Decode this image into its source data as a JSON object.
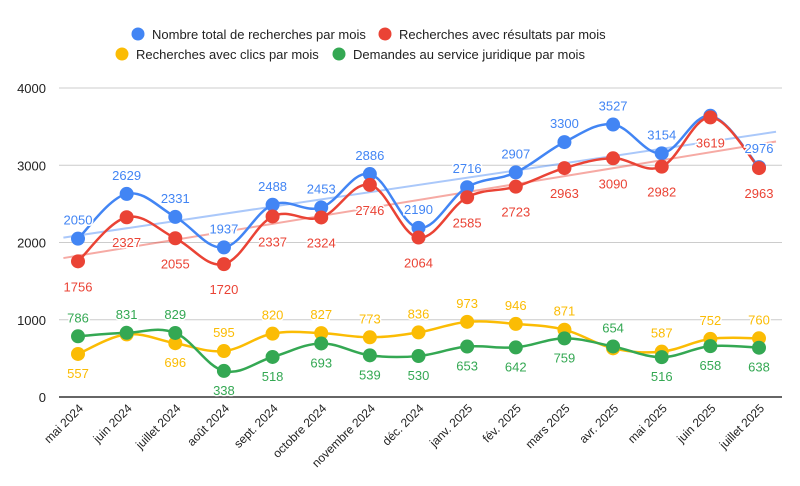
{
  "chart_data": {
    "type": "line",
    "title": "",
    "xlabel": "",
    "ylabel": "",
    "ylim": [
      0,
      4000
    ],
    "yticks": [
      "0",
      "1000",
      "2000",
      "3000",
      "4000"
    ],
    "grid": true,
    "legend_position": "top",
    "categories": [
      "mai 2024",
      "juin 2024",
      "juillet 2024",
      "août 2024",
      "sept. 2024",
      "octobre 2024",
      "novembre 2024",
      "déc. 2024",
      "janv. 2025",
      "fév. 2025",
      "mars 2025",
      "avr. 2025",
      "mai 2025",
      "juin 2025",
      "juillet 2025"
    ],
    "series": [
      {
        "name": "Nombre total de recherches par mois",
        "color": "#4285F4",
        "trendline": true,
        "values": [
          2050,
          2629,
          2331,
          1937,
          2488,
          2453,
          2886,
          2190,
          2716,
          2907,
          3300,
          3527,
          3154,
          3640,
          2976
        ],
        "labels": [
          "2050",
          "2629",
          "2331",
          "1937",
          "2488",
          "2453",
          "2886",
          "2190",
          "2716",
          "2907",
          "3300",
          "3527",
          "3154",
          "",
          "2976"
        ]
      },
      {
        "name": "Recherches avec résultats par mois",
        "color": "#EA4335",
        "trendline": true,
        "values": [
          1756,
          2327,
          2055,
          1720,
          2337,
          2324,
          2746,
          2064,
          2585,
          2723,
          2963,
          3090,
          2982,
          3619,
          2963
        ],
        "labels": [
          "1756",
          "2327",
          "2055",
          "1720",
          "2337",
          "2324",
          "2746",
          "2064",
          "2585",
          "2723",
          "2963",
          "3090",
          "2982",
          "3619",
          "2963"
        ]
      },
      {
        "name": "Recherches avec clics par mois",
        "color": "#FBBC04",
        "trendline": false,
        "values": [
          557,
          810,
          696,
          595,
          820,
          827,
          773,
          836,
          973,
          946,
          871,
          630,
          587,
          752,
          760
        ],
        "labels": [
          "557",
          "",
          "696",
          "595",
          "820",
          "827",
          "773",
          "836",
          "973",
          "946",
          "871",
          "",
          "587",
          "752",
          "760"
        ]
      },
      {
        "name": "Demandes au service juridique par mois",
        "color": "#34A853",
        "trendline": false,
        "values": [
          786,
          831,
          829,
          338,
          518,
          693,
          539,
          530,
          653,
          642,
          759,
          654,
          516,
          658,
          638
        ],
        "labels": [
          "786",
          "831",
          "829",
          "338",
          "518",
          "693",
          "539",
          "530",
          "653",
          "642",
          "759",
          "654",
          "516",
          "658",
          "638"
        ]
      }
    ]
  }
}
